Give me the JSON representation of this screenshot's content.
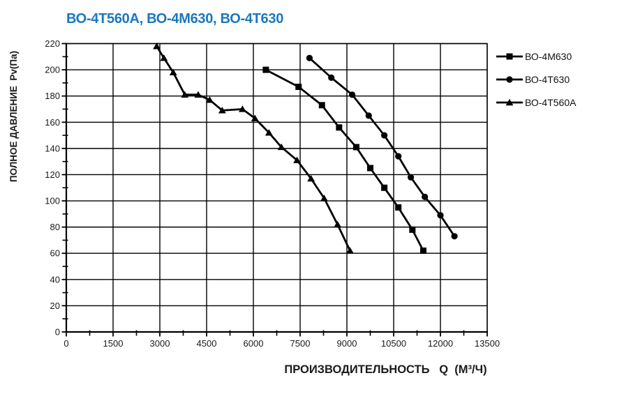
{
  "chart_data": {
    "type": "line",
    "title": "ВО-4Т560А, ВО-4М630, ВО-4Т630",
    "title_color": "#1a78be",
    "xlabel": "ПРОИЗВОДИТЕЛЬНОСТЬ   Q  (М³/Ч)",
    "ylabel": "ПОЛНОЕ ДАВЛЕНИЕ  Pv(Па)",
    "xlim": [
      0,
      13500
    ],
    "ylim": [
      0,
      220
    ],
    "x_ticks": [
      0,
      1500,
      3000,
      4500,
      6000,
      7500,
      9000,
      10500,
      12000,
      13500
    ],
    "y_ticks": [
      0,
      20,
      40,
      60,
      80,
      100,
      120,
      140,
      160,
      180,
      200,
      220
    ],
    "x_major_step": 1500,
    "x_minor_step": 750,
    "y_major_step": 20,
    "y_minor_step": 10,
    "grid": true,
    "grid_color": "#000000",
    "line_color": "#000000",
    "legend_position": "right-top",
    "series": [
      {
        "name": "ВО-4М630",
        "marker": "square",
        "color": "#000000",
        "points": [
          [
            6400,
            200
          ],
          [
            7450,
            187
          ],
          [
            8200,
            173
          ],
          [
            8750,
            156
          ],
          [
            9300,
            141
          ],
          [
            9750,
            125
          ],
          [
            10200,
            110
          ],
          [
            10650,
            95
          ],
          [
            11100,
            78
          ],
          [
            11450,
            62
          ]
        ]
      },
      {
        "name": "ВО-4Т630",
        "marker": "circle",
        "color": "#000000",
        "points": [
          [
            7800,
            209
          ],
          [
            8500,
            194
          ],
          [
            9170,
            181
          ],
          [
            9700,
            165
          ],
          [
            10200,
            150
          ],
          [
            10650,
            134
          ],
          [
            11050,
            118
          ],
          [
            11500,
            103
          ],
          [
            12000,
            89
          ],
          [
            12450,
            73
          ]
        ]
      },
      {
        "name": "ВО-4Т560А",
        "marker": "triangle",
        "color": "#000000",
        "points": [
          [
            2900,
            218
          ],
          [
            3130,
            209
          ],
          [
            3430,
            198
          ],
          [
            3800,
            181
          ],
          [
            4230,
            181
          ],
          [
            4600,
            177
          ],
          [
            5000,
            169
          ],
          [
            5650,
            170
          ],
          [
            6050,
            163
          ],
          [
            6500,
            152
          ],
          [
            6900,
            141
          ],
          [
            7400,
            131
          ],
          [
            7850,
            117
          ],
          [
            8270,
            102
          ],
          [
            8700,
            82
          ],
          [
            9100,
            62
          ]
        ]
      }
    ]
  }
}
